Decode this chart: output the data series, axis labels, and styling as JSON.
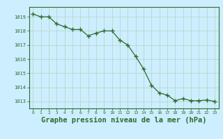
{
  "x": [
    0,
    1,
    2,
    3,
    4,
    5,
    6,
    7,
    8,
    9,
    10,
    11,
    12,
    13,
    14,
    15,
    16,
    17,
    18,
    19,
    20,
    21,
    22,
    23
  ],
  "y": [
    1019.2,
    1019.0,
    1019.0,
    1018.5,
    1018.3,
    1018.1,
    1018.1,
    1017.65,
    1017.85,
    1018.0,
    1018.0,
    1017.35,
    1017.0,
    1016.2,
    1015.3,
    1014.15,
    1013.6,
    1013.45,
    1013.05,
    1013.2,
    1013.05,
    1013.05,
    1013.1,
    1013.0
  ],
  "line_color": "#2d6a2d",
  "marker": "+",
  "markersize": 4,
  "bg_color": "#cceeff",
  "grid_color": "#b8d8c8",
  "axis_label_color": "#2d6a2d",
  "tick_color": "#2d6a2d",
  "xlabel": "Graphe pression niveau de la mer (hPa)",
  "xlabel_fontsize": 7.5,
  "yticks": [
    1013,
    1014,
    1015,
    1016,
    1017,
    1018,
    1019
  ],
  "ylim": [
    1012.5,
    1019.7
  ],
  "xlim": [
    -0.5,
    23.5
  ],
  "xticks": [
    0,
    1,
    2,
    3,
    4,
    5,
    6,
    7,
    8,
    9,
    10,
    11,
    12,
    13,
    14,
    15,
    16,
    17,
    18,
    19,
    20,
    21,
    22,
    23
  ]
}
